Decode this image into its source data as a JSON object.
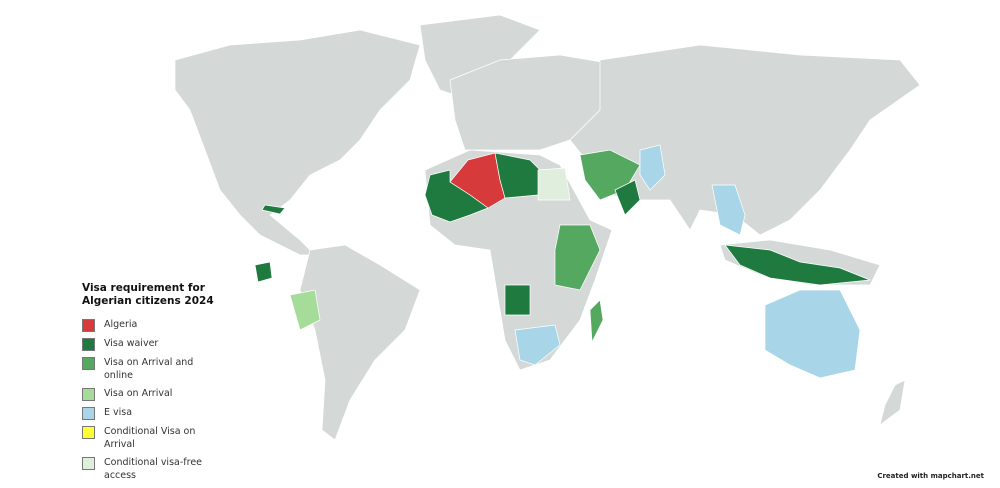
{
  "legend": {
    "title": "Visa requirement for Algerian citizens 2024",
    "items": [
      {
        "label": "Algeria",
        "color": "#d63a3a"
      },
      {
        "label": "Visa waiver",
        "color": "#1e7a3e"
      },
      {
        "label": "Visa on Arrival and online",
        "color": "#55a860"
      },
      {
        "label": "Visa on Arrival",
        "color": "#a6dc9a"
      },
      {
        "label": "E visa",
        "color": "#a9d5e8"
      },
      {
        "label": "Conditional Visa on Arrival",
        "color": "#ffff33"
      },
      {
        "label": "Conditional visa-free access",
        "color": "#dfeedd"
      }
    ]
  },
  "colors": {
    "no_data_land": "#d4d9d8",
    "background": "#ffffff"
  },
  "credit": "Created with mapchart.net"
}
